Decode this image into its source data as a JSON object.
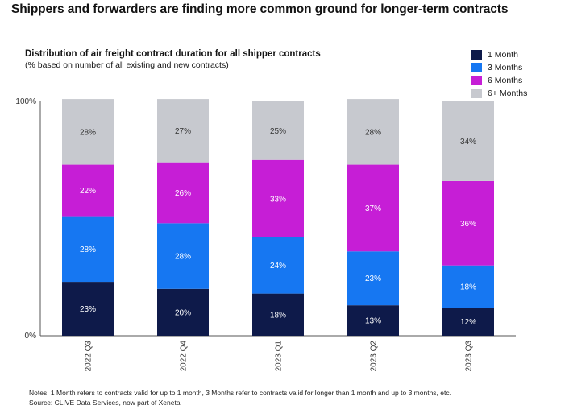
{
  "headline": "Shippers and forwarders are finding more common ground for longer-term contracts",
  "chart_data": {
    "type": "bar",
    "stacked": true,
    "title": "Distribution of air freight contract duration for all shipper contracts",
    "subtitle": "(% based on number of all existing and new contracts)",
    "categories": [
      "2022 Q3",
      "2022 Q4",
      "2023 Q1",
      "2023 Q2",
      "2023 Q3"
    ],
    "series": [
      {
        "name": "1 Month",
        "color": "#0e1a4a",
        "values": [
          23,
          20,
          18,
          13,
          12
        ]
      },
      {
        "name": "3 Months",
        "color": "#1677f2",
        "values": [
          28,
          28,
          24,
          23,
          18
        ]
      },
      {
        "name": "6 Months",
        "color": "#c61ed6",
        "values": [
          22,
          26,
          33,
          37,
          36
        ]
      },
      {
        "name": "6+ Months",
        "color": "#c7c9cf",
        "values": [
          28,
          27,
          25,
          28,
          34
        ]
      }
    ],
    "ylim": [
      0,
      100
    ],
    "ytick_labels": [
      "0%",
      "100%"
    ],
    "legend_position": "top-right",
    "grid": false
  },
  "notes": {
    "note": "Notes: 1 Month refers to contracts valid for up to 1 month, 3 Months refer  to contracts valid for longer than 1 month and up to 3 months, etc.",
    "source": "Source: CLIVE Data Services, now part of Xeneta"
  }
}
